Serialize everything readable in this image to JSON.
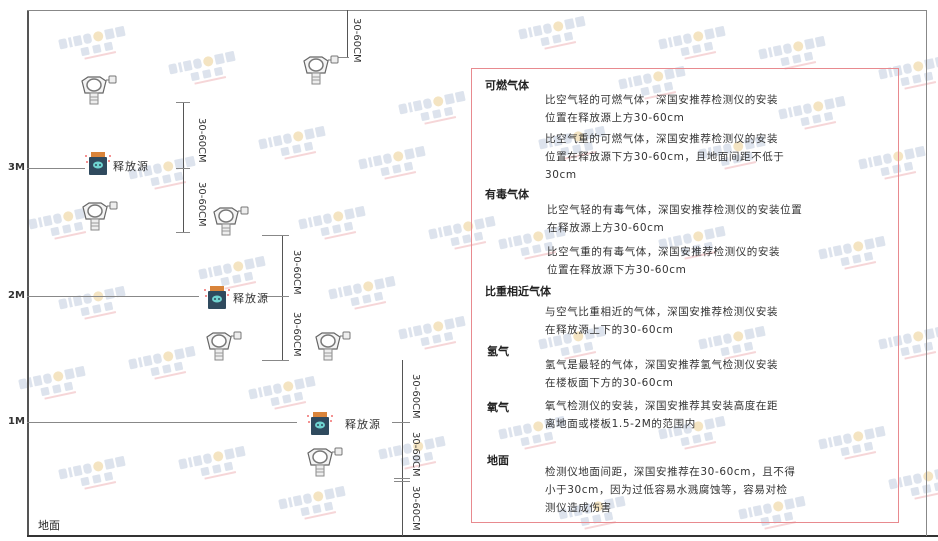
{
  "watermark": {
    "brand": "SING AN",
    "cn": "深国安"
  },
  "levels": {
    "m3": "3M",
    "m2": "2M",
    "m1": "1M",
    "ground": "地面"
  },
  "dimension_label": "30-60CM",
  "source_label": "释放源",
  "notes": {
    "combustible": {
      "title": "可燃气体",
      "light": [
        "比空气轻的可燃气体，深国安推荐检测仪的安装",
        "位置在释放源上方30-60cm"
      ],
      "heavy": [
        "比空气重的可燃气体，深国安推荐检测仪的安装",
        "位置在释放源下方30-60cm，且地面间距不低于",
        "30cm"
      ]
    },
    "toxic": {
      "title": "有毒气体",
      "light": [
        "比空气轻的有毒气体，深国安推荐检测仪的安装位置",
        "在释放源上方30-60cm"
      ],
      "heavy": [
        "比空气重的有毒气体，深国安推荐检测仪的安装",
        "位置在释放源下方30-60cm"
      ]
    },
    "similar": {
      "title": "比重相近气体",
      "text": [
        "与空气比重相近的气体，深国安推荐检测仪安装",
        "在释放源上下的30-60cm"
      ]
    },
    "hydrogen": {
      "title": "氢气",
      "text": [
        "氢气是最轻的气体，深国安推荐氢气检测仪安装",
        "在楼板面下方的30-60cm"
      ]
    },
    "oxygen": {
      "title": "氧气",
      "text": [
        "氧气检测仪的安装，深国安推荐其安装高度在距",
        "离地面或楼板1.5-2M的范围内"
      ]
    },
    "ground": {
      "title": "地面",
      "text": [
        "检测仪地面间距，深国安推荐在30-60cm，且不得",
        "小于30cm，因为过低容易水溅腐蚀等，容易对检",
        "测仪造成伤害"
      ]
    }
  },
  "colors": {
    "note_border": "#e88a8f",
    "source_body": "#2f4a5e",
    "source_face": "#6fd3d0",
    "source_cap": "#d9843a"
  }
}
